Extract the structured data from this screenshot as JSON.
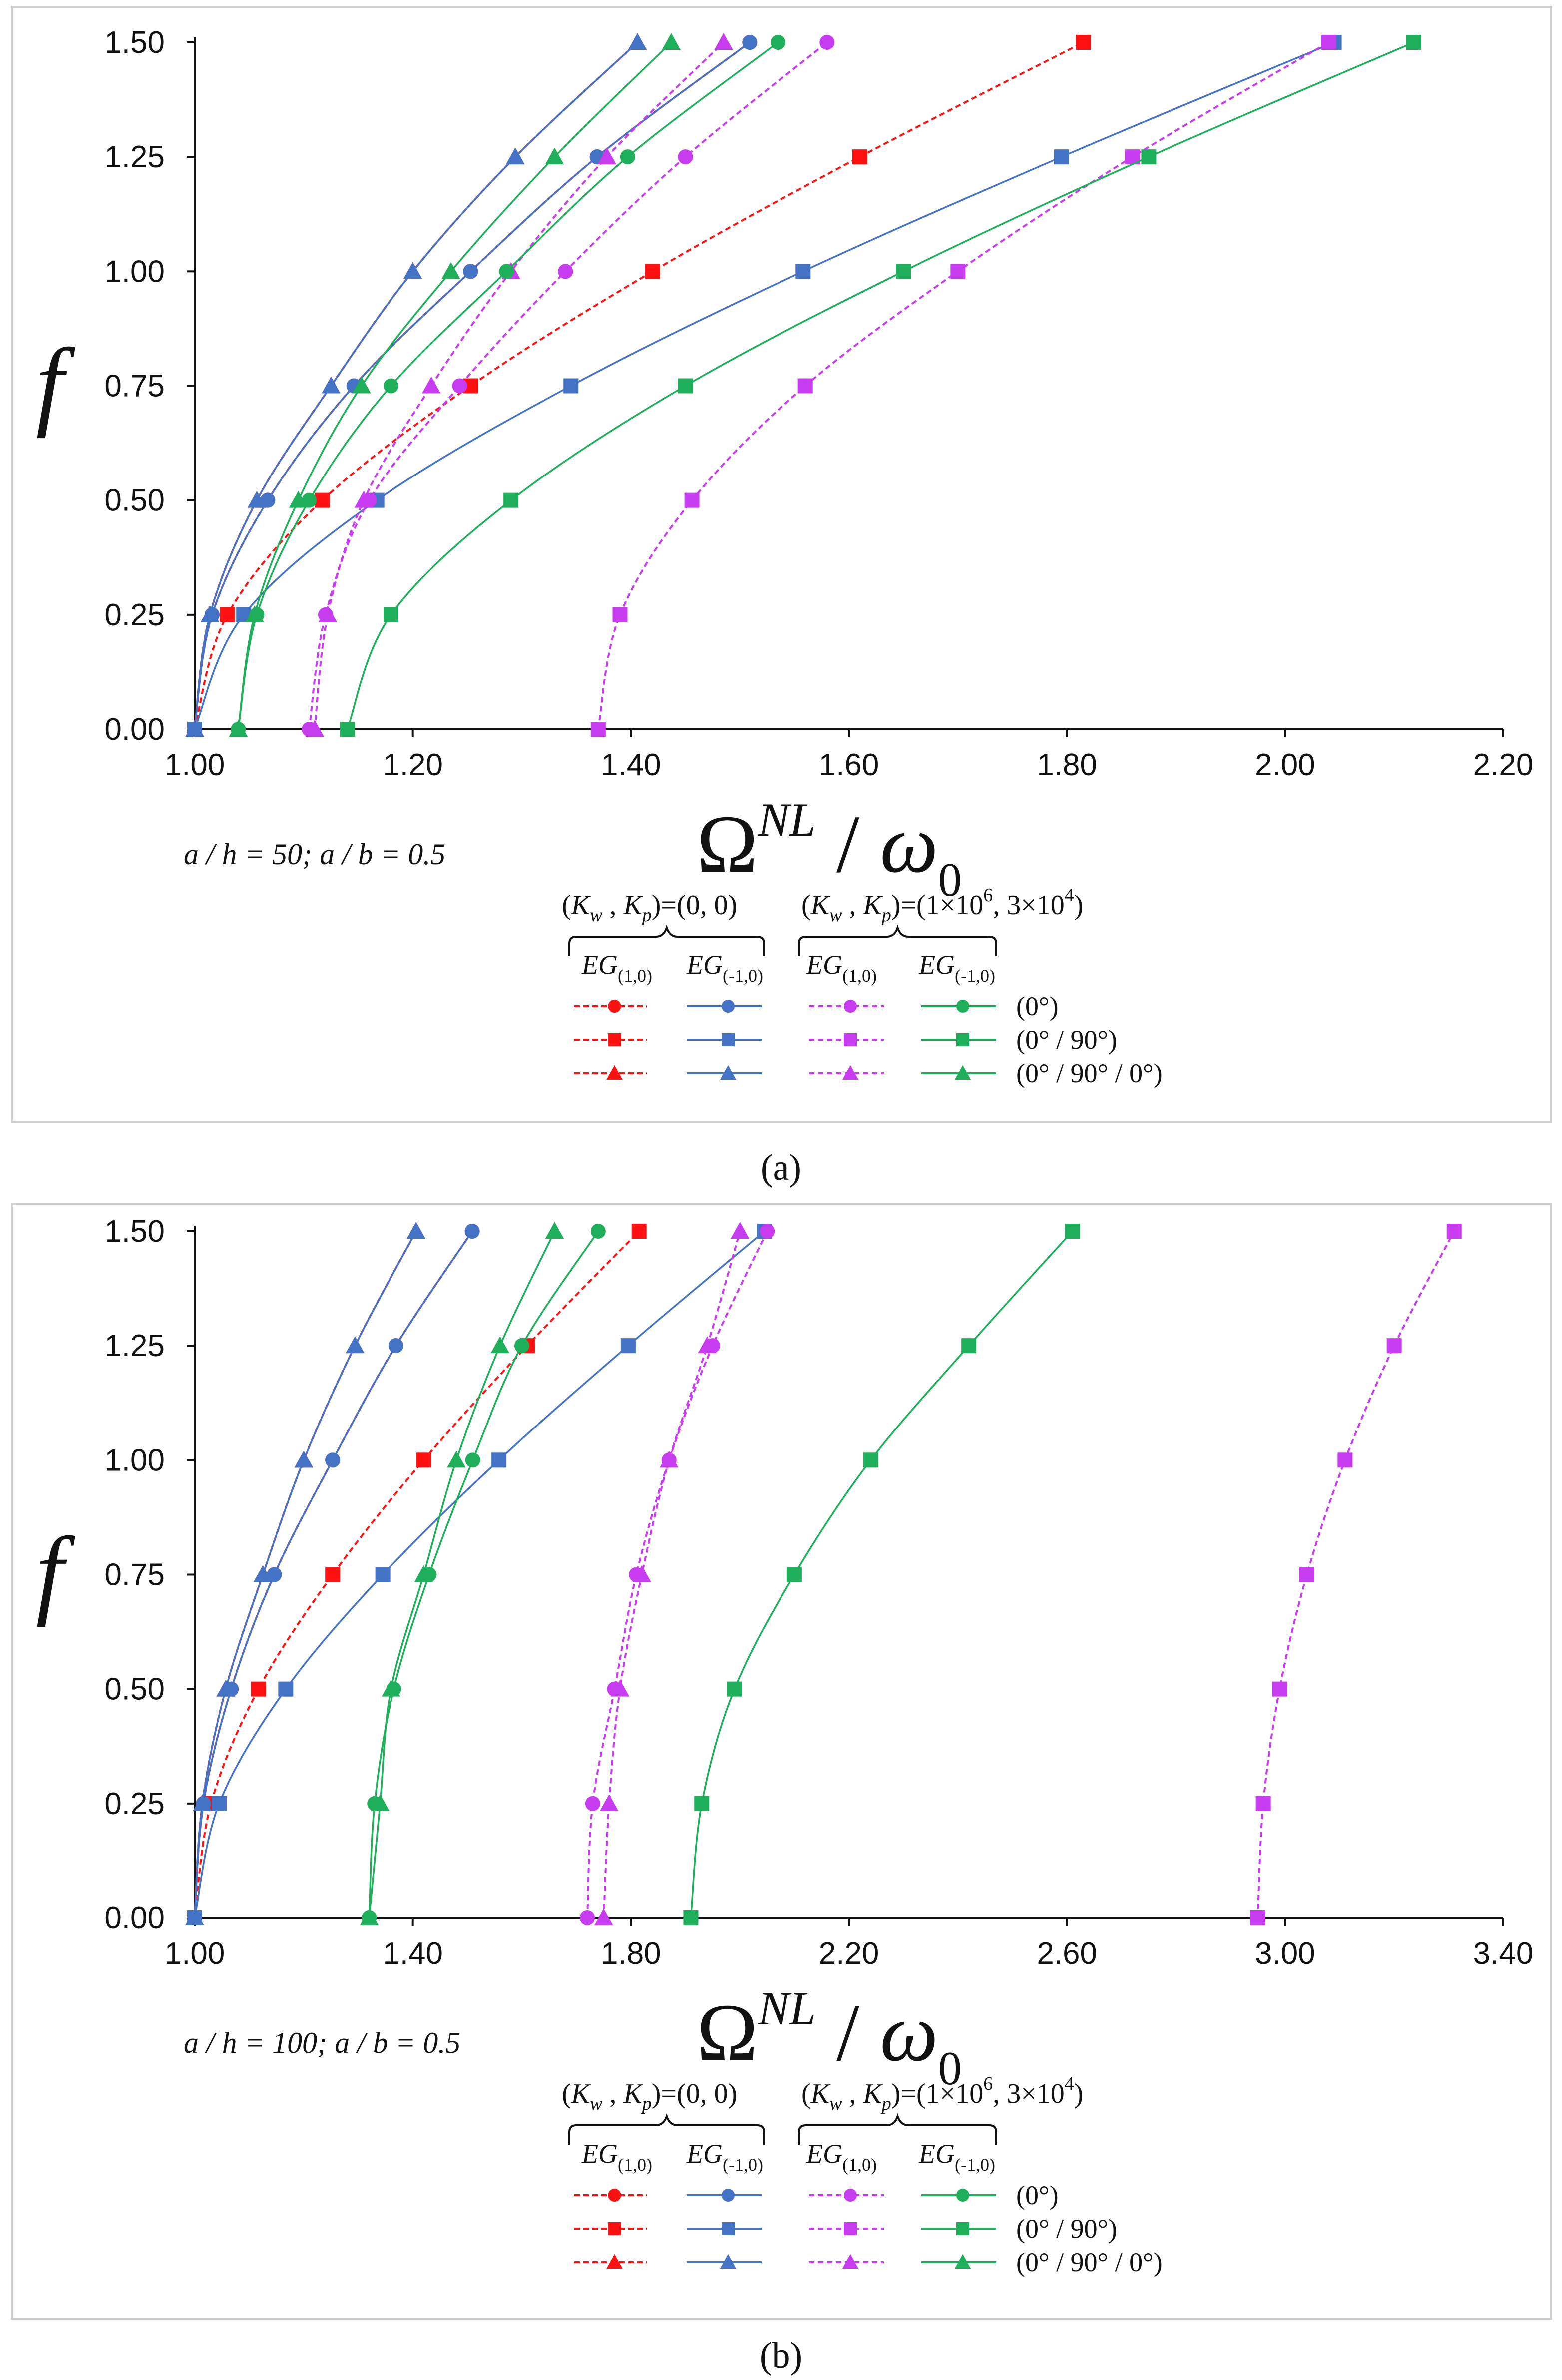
{
  "figure": {
    "caption_a": "(a)",
    "caption_b": "(b)",
    "colors": {
      "red": "#ff1111",
      "blue": "#4472c4",
      "magenta": "#c83cf0",
      "green": "#1fae5a"
    }
  },
  "legend": {
    "group1_label": "(K_w , K_p)=(0, 0)",
    "group1_head": [
      "(",
      "K",
      "w",
      " , ",
      "K",
      "p",
      ")=(0, 0)"
    ],
    "group2_head": [
      "(",
      "K",
      "w",
      " , ",
      "K",
      "p",
      ")=(1×10",
      "6",
      ", 3×10",
      "4",
      ")"
    ],
    "group2_label": "(K_w , K_p)=(1×10^6, 3×10^4)",
    "col_labels": [
      {
        "main": "EG",
        "sub": "(1,0)"
      },
      {
        "main": "EG",
        "sub": "(-1,0)"
      },
      {
        "main": "EG",
        "sub": "(1,0)"
      },
      {
        "main": "EG",
        "sub": "(-1,0)"
      }
    ],
    "row_labels": [
      "(0°)",
      "(0° / 90°)",
      "(0° / 90° / 0°)"
    ]
  },
  "chart_data": [
    {
      "id": "a",
      "type": "line",
      "ylabel": "f",
      "xlabel": "Ω^NL / ω_0",
      "xlabel_parts": {
        "omega": "Ω",
        "sup": "NL",
        "slash": " / ",
        "w": "ω",
        "sub": "0"
      },
      "annotation": "a / h = 50;  a / b = 0.5",
      "xlim": [
        1.0,
        2.2
      ],
      "ylim": [
        0.0,
        1.5
      ],
      "xticks": [
        "1.00",
        "1.20",
        "1.40",
        "1.60",
        "1.80",
        "2.00",
        "2.20"
      ],
      "yticks": [
        "0.00",
        "0.25",
        "0.50",
        "0.75",
        "1.00",
        "1.25",
        "1.50"
      ],
      "y_values": [
        0,
        0.25,
        0.5,
        0.75,
        1.0,
        1.25,
        1.5
      ],
      "series": [
        {
          "name": "EG(1,0) (0°) (0,0)",
          "color": "red",
          "dashed": true,
          "marker": "circle",
          "x": [
            1.0,
            1.016,
            1.067,
            1.146,
            1.253,
            1.369,
            1.509
          ]
        },
        {
          "name": "EG(1,0) (0°/90°) (0,0)",
          "color": "red",
          "dashed": true,
          "marker": "square",
          "x": [
            1.0,
            1.03,
            1.117,
            1.253,
            1.42,
            1.61,
            1.815
          ]
        },
        {
          "name": "EG(1,0) (0°/90°/0°) (0,0)",
          "color": "red",
          "dashed": true,
          "marker": "triangle",
          "x": [
            1.0,
            1.014,
            1.057,
            1.125,
            1.2,
            1.294,
            1.406
          ]
        },
        {
          "name": "EG(-1,0) (0°) (0,0)",
          "color": "blue",
          "dashed": false,
          "marker": "circle",
          "x": [
            1.0,
            1.016,
            1.067,
            1.146,
            1.253,
            1.369,
            1.509
          ]
        },
        {
          "name": "EG(-1,0) (0°/90°) (0,0)",
          "color": "blue",
          "dashed": false,
          "marker": "square",
          "x": [
            1.0,
            1.045,
            1.167,
            1.345,
            1.558,
            1.795,
            2.045
          ]
        },
        {
          "name": "EG(-1,0) (0°/90°/0°) (0,0)",
          "color": "blue",
          "dashed": false,
          "marker": "triangle",
          "x": [
            1.0,
            1.014,
            1.057,
            1.125,
            1.2,
            1.294,
            1.406
          ]
        },
        {
          "name": "EG(1,0) (0°) (1e6,3e4)",
          "color": "magenta",
          "dashed": true,
          "marker": "circle",
          "x": [
            1.105,
            1.12,
            1.16,
            1.243,
            1.34,
            1.45,
            1.58
          ]
        },
        {
          "name": "EG(1,0) (0°/90°) (1e6,3e4)",
          "color": "magenta",
          "dashed": true,
          "marker": "square",
          "x": [
            1.37,
            1.39,
            1.456,
            1.56,
            1.7,
            1.86,
            2.04
          ]
        },
        {
          "name": "EG(1,0) (0°/90°/0°) (1e6,3e4)",
          "color": "magenta",
          "dashed": true,
          "marker": "triangle",
          "x": [
            1.11,
            1.122,
            1.155,
            1.217,
            1.29,
            1.378,
            1.485
          ]
        },
        {
          "name": "EG(-1,0) (0°) (1e6,3e4)",
          "color": "green",
          "dashed": false,
          "marker": "circle",
          "x": [
            1.04,
            1.057,
            1.105,
            1.18,
            1.286,
            1.397,
            1.535
          ]
        },
        {
          "name": "EG(-1,0) (0°/90°) (1e6,3e4)",
          "color": "green",
          "dashed": false,
          "marker": "square",
          "x": [
            1.14,
            1.18,
            1.29,
            1.45,
            1.65,
            1.875,
            2.118
          ]
        },
        {
          "name": "EG(-1,0) (0°/90°/0°) (1e6,3e4)",
          "color": "green",
          "dashed": false,
          "marker": "triangle",
          "x": [
            1.04,
            1.055,
            1.095,
            1.153,
            1.235,
            1.33,
            1.437
          ]
        }
      ]
    },
    {
      "id": "b",
      "type": "line",
      "ylabel": "f",
      "xlabel": "Ω^NL / ω_0",
      "xlabel_parts": {
        "omega": "Ω",
        "sup": "NL",
        "slash": " / ",
        "w": "ω",
        "sub": "0"
      },
      "annotation": "a / h = 100;  a / b = 0.5",
      "xlim": [
        1.0,
        3.4
      ],
      "ylim": [
        0.0,
        1.5
      ],
      "xticks": [
        "1.00",
        "1.40",
        "1.80",
        "2.20",
        "2.60",
        "3.00",
        "3.40"
      ],
      "yticks": [
        "0.00",
        "0.25",
        "0.50",
        "0.75",
        "1.00",
        "1.25",
        "1.50"
      ],
      "y_values": [
        0,
        0.25,
        0.5,
        0.75,
        1.0,
        1.25,
        1.5
      ],
      "series": [
        {
          "name": "EG(1,0) (0°) (0,0)",
          "color": "red",
          "dashed": true,
          "marker": "circle",
          "x": [
            1.0,
            1.016,
            1.067,
            1.146,
            1.253,
            1.369,
            1.509
          ]
        },
        {
          "name": "EG(1,0) (0°/90°) (0,0)",
          "color": "red",
          "dashed": true,
          "marker": "square",
          "x": [
            1.0,
            1.03,
            1.117,
            1.253,
            1.42,
            1.61,
            1.815
          ]
        },
        {
          "name": "EG(1,0) (0°/90°/0°) (0,0)",
          "color": "red",
          "dashed": true,
          "marker": "triangle",
          "x": [
            1.0,
            1.014,
            1.057,
            1.125,
            1.2,
            1.294,
            1.406
          ]
        },
        {
          "name": "EG(-1,0) (0°) (0,0)",
          "color": "blue",
          "dashed": false,
          "marker": "circle",
          "x": [
            1.0,
            1.016,
            1.067,
            1.146,
            1.253,
            1.369,
            1.509
          ]
        },
        {
          "name": "EG(-1,0) (0°/90°) (0,0)",
          "color": "blue",
          "dashed": false,
          "marker": "square",
          "x": [
            1.0,
            1.045,
            1.167,
            1.345,
            1.558,
            1.795,
            2.045
          ]
        },
        {
          "name": "EG(-1,0) (0°/90°/0°) (0,0)",
          "color": "blue",
          "dashed": false,
          "marker": "triangle",
          "x": [
            1.0,
            1.014,
            1.057,
            1.125,
            1.2,
            1.294,
            1.406
          ]
        },
        {
          "name": "EG(1,0) (0°) (1e6,3e4)",
          "color": "magenta",
          "dashed": true,
          "marker": "circle",
          "x": [
            1.72,
            1.73,
            1.77,
            1.81,
            1.87,
            1.95,
            2.05
          ]
        },
        {
          "name": "EG(1,0) (0°/90°) (1e6,3e4)",
          "color": "magenta",
          "dashed": true,
          "marker": "square",
          "x": [
            2.95,
            2.96,
            2.99,
            3.04,
            3.11,
            3.2,
            3.31
          ]
        },
        {
          "name": "EG(1,0) (0°/90°/0°) (1e6,3e4)",
          "color": "magenta",
          "dashed": true,
          "marker": "triangle",
          "x": [
            1.75,
            1.76,
            1.78,
            1.82,
            1.87,
            1.94,
            2.0
          ]
        },
        {
          "name": "EG(-1,0) (0°) (1e6,3e4)",
          "color": "green",
          "dashed": false,
          "marker": "circle",
          "x": [
            1.32,
            1.33,
            1.365,
            1.43,
            1.51,
            1.6,
            1.74
          ]
        },
        {
          "name": "EG(-1,0) (0°/90°) (1e6,3e4)",
          "color": "green",
          "dashed": false,
          "marker": "square",
          "x": [
            1.91,
            1.93,
            1.99,
            2.1,
            2.24,
            2.42,
            2.61
          ]
        },
        {
          "name": "EG(-1,0) (0°/90°/0°) (1e6,3e4)",
          "color": "green",
          "dashed": false,
          "marker": "triangle",
          "x": [
            1.32,
            1.34,
            1.36,
            1.42,
            1.48,
            1.56,
            1.66
          ]
        }
      ]
    }
  ]
}
